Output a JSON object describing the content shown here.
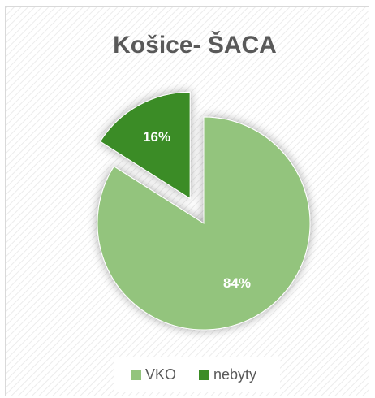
{
  "chart_data": {
    "type": "pie",
    "title": "Košice- ŠACA",
    "categories": [
      "VKO",
      "nebyty"
    ],
    "values": [
      84,
      16
    ],
    "value_labels": [
      "84%",
      "16%"
    ],
    "colors": [
      "#93c47d",
      "#3b8c25"
    ],
    "explode": [
      false,
      true
    ],
    "legend": "bottom"
  }
}
